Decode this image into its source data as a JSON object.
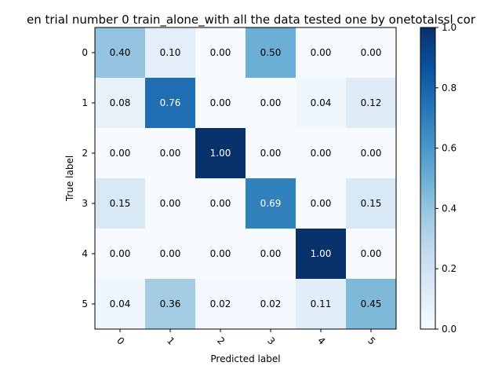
{
  "chart_data": {
    "type": "heatmap",
    "title": "en trial number 0  train_alone_with all the data tested one by onetotalssl cor",
    "xlabel": "Predicted label",
    "ylabel": "True label",
    "x_categories": [
      "0",
      "1",
      "2",
      "3",
      "4",
      "5"
    ],
    "y_categories": [
      "0",
      "1",
      "2",
      "3",
      "4",
      "5"
    ],
    "values": [
      [
        0.4,
        0.1,
        0.0,
        0.5,
        0.0,
        0.0
      ],
      [
        0.08,
        0.76,
        0.0,
        0.0,
        0.04,
        0.12
      ],
      [
        0.0,
        0.0,
        1.0,
        0.0,
        0.0,
        0.0
      ],
      [
        0.15,
        0.0,
        0.0,
        0.69,
        0.0,
        0.15
      ],
      [
        0.0,
        0.0,
        0.0,
        0.0,
        1.0,
        0.0
      ],
      [
        0.04,
        0.36,
        0.02,
        0.02,
        0.11,
        0.45
      ]
    ],
    "colorbar": {
      "range": [
        0.0,
        1.0
      ],
      "ticks": [
        "0.0",
        "0.2",
        "0.4",
        "0.6",
        "0.8",
        "1.0"
      ],
      "colormap": "Blues"
    },
    "x_tick_rotation": "45 degrees",
    "grid": false
  }
}
